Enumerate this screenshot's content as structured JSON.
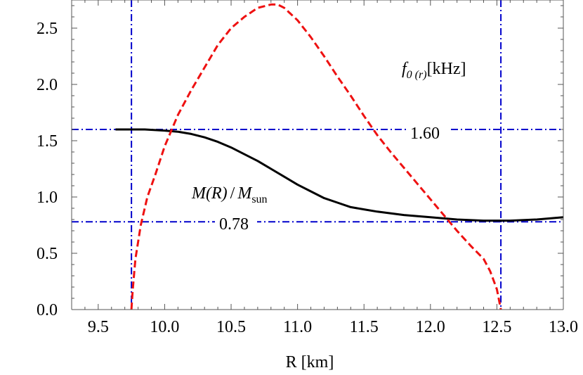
{
  "chart_data": {
    "type": "line",
    "title": "",
    "xlabel": "R [km]",
    "ylabel": "",
    "xlim": [
      9.3,
      13.0
    ],
    "ylim": [
      0.0,
      2.75
    ],
    "x_ticks": [
      9.5,
      10.0,
      10.5,
      11.0,
      11.5,
      12.0,
      12.5,
      13.0
    ],
    "x_tick_labels": [
      "9.5",
      "10.0",
      "10.5",
      "11.0",
      "11.5",
      "12.0",
      "12.5",
      "13.0"
    ],
    "y_ticks": [
      0.0,
      0.5,
      1.0,
      1.5,
      2.0,
      2.5
    ],
    "y_tick_labels": [
      "0.0",
      "0.5",
      "1.0",
      "1.5",
      "2.0",
      "2.5"
    ],
    "grid": false,
    "series": [
      {
        "label_parts": [
          "M(R)",
          "/",
          "M",
          "sun"
        ],
        "color": "#000000",
        "style": "solid",
        "x": [
          9.63,
          9.75,
          9.85,
          10.0,
          10.1,
          10.2,
          10.3,
          10.4,
          10.5,
          10.6,
          10.7,
          10.8,
          10.9,
          11.0,
          11.1,
          11.2,
          11.3,
          11.4,
          11.5,
          11.6,
          11.8,
          12.0,
          12.2,
          12.4,
          12.6,
          12.8,
          13.0
        ],
        "y": [
          1.6,
          1.6,
          1.6,
          1.59,
          1.58,
          1.56,
          1.53,
          1.49,
          1.44,
          1.38,
          1.32,
          1.25,
          1.18,
          1.11,
          1.05,
          0.99,
          0.95,
          0.91,
          0.89,
          0.87,
          0.84,
          0.82,
          0.8,
          0.79,
          0.79,
          0.8,
          0.82
        ]
      },
      {
        "label_parts": [
          "f",
          "0 (r)",
          "[kHz]"
        ],
        "color": "#ee1111",
        "style": "dashed",
        "x": [
          9.75,
          9.76,
          9.78,
          9.82,
          9.87,
          9.93,
          10.0,
          10.1,
          10.2,
          10.3,
          10.4,
          10.5,
          10.6,
          10.7,
          10.8,
          10.85,
          10.9,
          11.0,
          11.1,
          11.2,
          11.3,
          11.4,
          11.5,
          11.6,
          11.7,
          11.8,
          11.9,
          12.0,
          12.1,
          12.2,
          12.3,
          12.4,
          12.45,
          12.5,
          12.53
        ],
        "y": [
          0.0,
          0.18,
          0.45,
          0.75,
          1.0,
          1.2,
          1.45,
          1.73,
          1.95,
          2.15,
          2.35,
          2.5,
          2.6,
          2.68,
          2.71,
          2.71,
          2.68,
          2.57,
          2.42,
          2.25,
          2.07,
          1.9,
          1.72,
          1.55,
          1.4,
          1.26,
          1.12,
          0.98,
          0.84,
          0.7,
          0.57,
          0.45,
          0.34,
          0.18,
          0.0
        ]
      }
    ],
    "reference_lines": [
      {
        "orientation": "vertical",
        "value": 9.75,
        "color": "#0000cc",
        "style": "dashdot"
      },
      {
        "orientation": "vertical",
        "value": 12.53,
        "color": "#0000cc",
        "style": "dashdot"
      },
      {
        "orientation": "horizontal",
        "value": 1.6,
        "label": "1.60",
        "color": "#0000cc",
        "style": "dashdot"
      },
      {
        "orientation": "horizontal",
        "value": 0.78,
        "label": "0.78",
        "color": "#0000cc",
        "style": "dashdot"
      }
    ]
  }
}
